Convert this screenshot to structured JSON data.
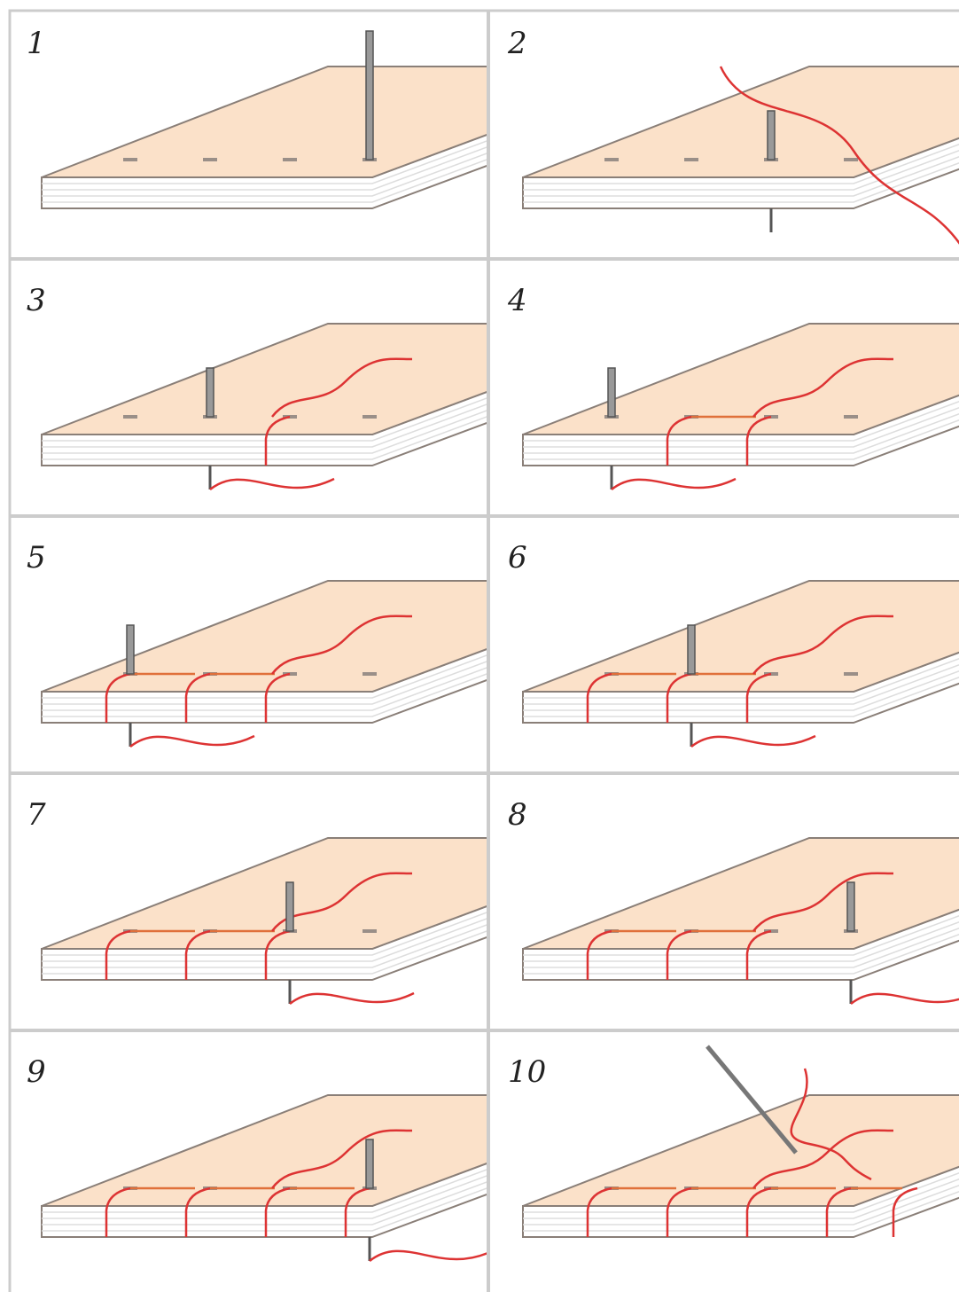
{
  "steps": [
    {
      "label": "1"
    },
    {
      "label": "2"
    },
    {
      "label": "3"
    },
    {
      "label": "4"
    },
    {
      "label": "5"
    },
    {
      "label": "6"
    },
    {
      "label": "7"
    },
    {
      "label": "8"
    },
    {
      "label": "9"
    },
    {
      "label": "10"
    }
  ]
}
